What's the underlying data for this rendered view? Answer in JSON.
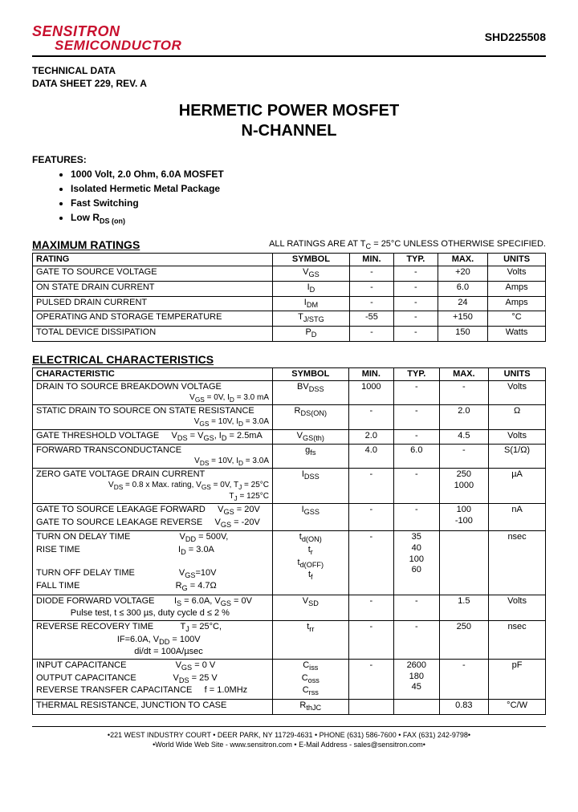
{
  "header": {
    "logo_line1": "SENSITRON",
    "logo_line2": "SEMICONDUCTOR",
    "part_number": "SHD225508"
  },
  "tech_data": {
    "line1": "TECHNICAL DATA",
    "line2": "DATA SHEET 229, REV. A"
  },
  "title": {
    "line1": "HERMETIC POWER MOSFET",
    "line2": "N-CHANNEL"
  },
  "features": {
    "label": "FEATURES:",
    "items": [
      "1000 Volt, 2.0 Ohm, 6.0A MOSFET",
      "Isolated Hermetic Metal Package",
      "Fast Switching",
      "Low R"
    ],
    "item4_sub": "DS (on)"
  },
  "max_ratings": {
    "heading": "MAXIMUM RATINGS",
    "note_pre": "ALL RATINGS ARE AT T",
    "note_sub": "C",
    "note_post": " = 25°C UNLESS OTHERWISE SPECIFIED.",
    "columns": [
      "RATING",
      "SYMBOL",
      "MIN.",
      "TYP.",
      "MAX.",
      "UNITS"
    ],
    "rows": [
      {
        "rating": "GATE TO SOURCE VOLTAGE",
        "symbol": "V",
        "sub": "GS",
        "min": "-",
        "typ": "-",
        "max": "+20",
        "units": "Volts"
      },
      {
        "rating": "ON STATE DRAIN CURRENT",
        "symbol": "I",
        "sub": "D",
        "min": "-",
        "typ": "-",
        "max": "6.0",
        "units": "Amps"
      },
      {
        "rating": "PULSED DRAIN CURRENT",
        "symbol": "I",
        "sub": "DM",
        "min": "-",
        "typ": "-",
        "max": "24",
        "units": "Amps"
      },
      {
        "rating": "OPERATING AND STORAGE TEMPERATURE",
        "symbol": "T",
        "sub": "J/STG",
        "min": "-55",
        "typ": "-",
        "max": "+150",
        "units": "°C"
      },
      {
        "rating": "TOTAL DEVICE DISSIPATION",
        "symbol": "P",
        "sub": "D",
        "min": "-",
        "typ": "-",
        "max": "150",
        "units": "Watts"
      }
    ]
  },
  "elec": {
    "heading": "ELECTRICAL CHARACTERISTICS",
    "columns": [
      "CHARACTERISTIC",
      "SYMBOL",
      "MIN.",
      "TYP.",
      "MAX.",
      "UNITS"
    ],
    "rows": [
      {
        "char": "DRAIN TO SOURCE BREAKDOWN VOLTAGE",
        "cond": "V<sub>GS</sub> = 0V, I<sub>D</sub> = 3.0 mA",
        "symbol": "BV<sub>DSS</sub>",
        "min": "1000",
        "typ": "-",
        "max": "-",
        "units": "Volts"
      },
      {
        "char": "STATIC DRAIN TO SOURCE ON STATE RESISTANCE",
        "cond": "V<sub>GS</sub> = 10V, I<sub>D</sub> = 3.0A",
        "symbol": "R<sub>DS(ON)</sub>",
        "min": "-",
        "typ": "-",
        "max": "2.0",
        "units": "Ω"
      },
      {
        "char": "GATE THRESHOLD VOLTAGE &nbsp;&nbsp;&nbsp; V<sub>DS</sub> = V<sub>GS</sub>, I<sub>D</sub> = 2.5mA",
        "cond": "",
        "symbol": "V<sub>GS(th)</sub>",
        "min": "2.0",
        "typ": "-",
        "max": "4.5",
        "units": "Volts"
      },
      {
        "char": "FORWARD TRANSCONDUCTANCE",
        "cond": "V<sub>DS</sub> = 10V, I<sub>D</sub> = 3.0A",
        "symbol": "g<sub>fs</sub>",
        "min": "4.0",
        "typ": "6.0",
        "max": "-",
        "units": "S(1/Ω)"
      },
      {
        "char": "ZERO GATE VOLTAGE DRAIN CURRENT",
        "cond": "V<sub>DS</sub> = 0.8 x Max. rating, V<sub>GS</sub> = 0V, T<sub>J</sub> = 25°C<br>T<sub>J</sub> = 125°C",
        "symbol": "I<sub>DSS</sub>",
        "min": "-",
        "typ": "-",
        "max": "250<br>1000",
        "units": "µA"
      },
      {
        "char": "GATE TO SOURCE LEAKAGE FORWARD &nbsp;&nbsp;&nbsp; V<sub>GS</sub> = 20V<br>GATE TO SOURCE LEAKAGE REVERSE &nbsp;&nbsp;&nbsp; V<sub>GS</sub> = -20V",
        "cond": "",
        "symbol": "I<sub>GSS</sub>",
        "min": "-",
        "typ": "-",
        "max": "100<br>-100",
        "units": "nA"
      },
      {
        "char": "TURN ON DELAY TIME &nbsp;&nbsp;&nbsp;&nbsp;&nbsp;&nbsp;&nbsp;&nbsp;&nbsp;&nbsp;&nbsp;&nbsp;&nbsp;&nbsp;&nbsp;&nbsp;&nbsp;&nbsp; V<sub>DD</sub> = 500V,<br>RISE TIME &nbsp;&nbsp;&nbsp;&nbsp;&nbsp;&nbsp;&nbsp;&nbsp;&nbsp;&nbsp;&nbsp;&nbsp;&nbsp;&nbsp;&nbsp;&nbsp;&nbsp;&nbsp;&nbsp;&nbsp;&nbsp;&nbsp;&nbsp;&nbsp;&nbsp;&nbsp;&nbsp;&nbsp;&nbsp;&nbsp;&nbsp;&nbsp;&nbsp;&nbsp;&nbsp;&nbsp;&nbsp;&nbsp; I<sub>D</sub> = 3.0A<br><br>TURN OFF DELAY TIME &nbsp;&nbsp;&nbsp;&nbsp;&nbsp;&nbsp;&nbsp;&nbsp;&nbsp;&nbsp;&nbsp;&nbsp;&nbsp;&nbsp;&nbsp;&nbsp; V<sub>GS</sub>=10V<br>FALL TIME &nbsp;&nbsp;&nbsp;&nbsp;&nbsp;&nbsp;&nbsp;&nbsp;&nbsp;&nbsp;&nbsp;&nbsp;&nbsp;&nbsp;&nbsp;&nbsp;&nbsp;&nbsp;&nbsp;&nbsp;&nbsp;&nbsp;&nbsp;&nbsp;&nbsp;&nbsp;&nbsp;&nbsp;&nbsp;&nbsp;&nbsp;&nbsp;&nbsp;&nbsp;&nbsp;&nbsp;&nbsp; R<sub>G</sub> = 4.7Ω",
        "cond": "",
        "symbol": "t<sub>d(ON)</sub><br>t<sub>r</sub><br>t<sub>d(OFF)</sub><br>t<sub>f</sub>",
        "min": "-",
        "typ": "35<br>40<br>100<br>60",
        "max": "",
        "units": "nsec"
      },
      {
        "char": "DIODE FORWARD VOLTAGE &nbsp;&nbsp;&nbsp;&nbsp;&nbsp;&nbsp; I<sub>S</sub> = 6.0A, V<sub>GS</sub> = 0V<br>&nbsp;&nbsp;&nbsp;&nbsp;&nbsp;&nbsp;&nbsp;&nbsp;&nbsp;&nbsp;&nbsp;&nbsp;&nbsp;&nbsp;Pulse test, t ≤ 300 µs, duty cycle d ≤ 2 %",
        "cond": "",
        "symbol": "V<sub>SD</sub>",
        "min": "-",
        "typ": "-",
        "max": "1.5",
        "units": "Volts"
      },
      {
        "char": "REVERSE RECOVERY TIME &nbsp;&nbsp;&nbsp;&nbsp;&nbsp;&nbsp;&nbsp;&nbsp;&nbsp; T<sub>J</sub> = 25°C,<br>&nbsp;&nbsp;&nbsp;&nbsp;&nbsp;&nbsp;&nbsp;&nbsp;&nbsp;&nbsp;&nbsp;&nbsp;&nbsp;&nbsp;&nbsp;&nbsp;&nbsp;&nbsp;&nbsp;&nbsp;&nbsp;&nbsp;&nbsp;&nbsp;&nbsp;&nbsp;&nbsp;&nbsp;&nbsp;&nbsp;&nbsp;&nbsp; IF=6.0A, V<sub>DD</sub> = 100V<br>&nbsp;&nbsp;&nbsp;&nbsp;&nbsp;&nbsp;&nbsp;&nbsp;&nbsp;&nbsp;&nbsp;&nbsp;&nbsp;&nbsp;&nbsp;&nbsp;&nbsp;&nbsp;&nbsp;&nbsp;&nbsp;&nbsp;&nbsp;&nbsp;&nbsp;&nbsp;&nbsp;&nbsp;&nbsp;&nbsp;&nbsp;&nbsp;&nbsp;&nbsp;&nbsp;&nbsp;&nbsp;&nbsp;&nbsp; di/dt = 100A/µsec",
        "cond": "",
        "symbol": "t<sub>rr</sub>",
        "min": "-",
        "typ": "-",
        "max": "250",
        "units": "nsec"
      },
      {
        "char": "INPUT CAPACITANCE &nbsp;&nbsp;&nbsp;&nbsp;&nbsp;&nbsp;&nbsp;&nbsp;&nbsp;&nbsp;&nbsp;&nbsp;&nbsp;&nbsp;&nbsp;&nbsp;&nbsp;&nbsp; V<sub>GS</sub> = 0 V<br>OUTPUT CAPACITANCE &nbsp;&nbsp;&nbsp;&nbsp;&nbsp;&nbsp;&nbsp;&nbsp;&nbsp;&nbsp;&nbsp;&nbsp;&nbsp; V<sub>DS</sub> = 25 V<br>REVERSE TRANSFER CAPACITANCE &nbsp;&nbsp;&nbsp; f = 1.0MHz",
        "cond": "",
        "symbol": "C<sub>iss</sub><br>C<sub>oss</sub><br>C<sub>rss</sub>",
        "min": "-",
        "typ": "2600<br>180<br>45",
        "max": "-",
        "units": "pF"
      },
      {
        "char": "THERMAL RESISTANCE, JUNCTION TO CASE",
        "cond": "",
        "symbol": "R<sub>thJC</sub>",
        "min": "",
        "typ": "",
        "max": "0.83",
        "units": "°C/W"
      }
    ]
  },
  "footer": {
    "line1": "•221 WEST INDUSTRY COURT • DEER PARK, NY 11729-4631 • PHONE (631) 586-7600 • FAX (631) 242-9798•",
    "line2": "•World Wide Web Site - www.sensitron.com • E-Mail Address - sales@sensitron.com•"
  }
}
